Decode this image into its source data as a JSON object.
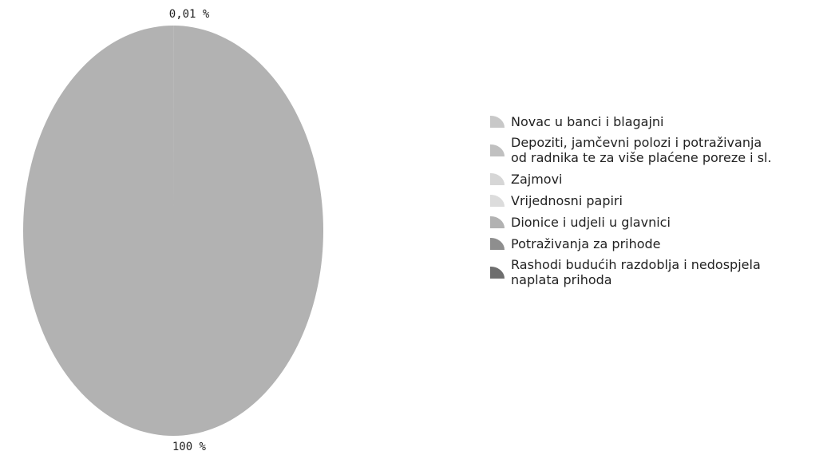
{
  "chart_data": {
    "type": "pie",
    "categories": [
      "Novac u banci i blagajni",
      "Depoziti, jamčevni polozi i potraživanja\nod radnika te za više plaćene poreze i sl.",
      "Zajmovi",
      "Vrijednosni papiri",
      "Dionice i udjeli u glavnici",
      "Potraživanja za prihode",
      "Rashodi budućih razdoblja i nedospjela\nnaplata prihoda"
    ],
    "values": [
      0.01,
      0,
      0,
      0,
      100,
      0,
      0
    ],
    "value_labels": [
      "0,01 %",
      null,
      null,
      null,
      "100 %",
      null,
      null
    ],
    "colors": [
      "#c8c8c8",
      "#c0c0c0",
      "#d6d6d6",
      "#dcdcdc",
      "#b2b2b2",
      "#8e8e8e",
      "#6e6e6e"
    ],
    "legend": "right"
  }
}
